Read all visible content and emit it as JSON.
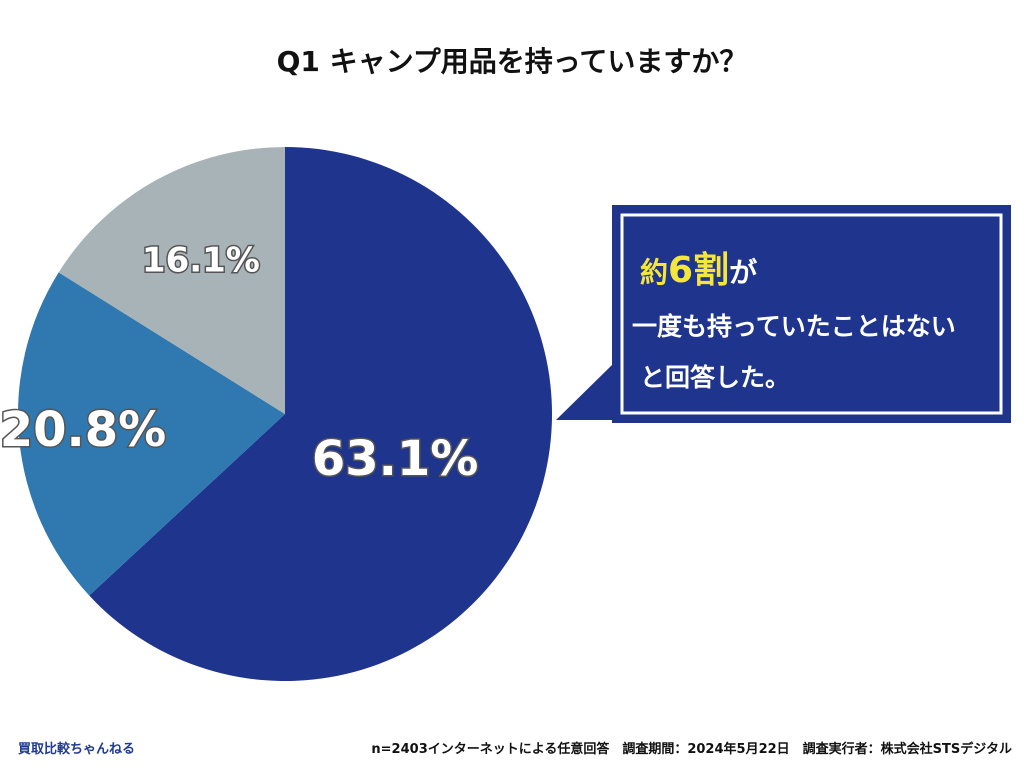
{
  "chart_data": {
    "type": "pie",
    "title": "Q1 キャンプ用品を持っていますか？",
    "values": [
      63.1,
      20.8,
      16.1
    ],
    "labels": [
      "63.1%",
      "20.8%",
      "16.1%"
    ],
    "colors": [
      "#1f348c",
      "#2f78b0",
      "#a8b3b7"
    ]
  },
  "callout": {
    "line1_part1": "約",
    "line1_part2": "6割",
    "line1_part3": "が",
    "line2": "一度も持っていたことはない",
    "line3": "と回答した。",
    "bg_color": "#1f348c",
    "highlight_color": "#f5e63c"
  },
  "footer": {
    "brand": "買取比較ちゃんねる",
    "note": "n=2403インターネットによる任意回答　調査期間：2024年5月22日　調査実行者：株式会社STSデジタル"
  }
}
